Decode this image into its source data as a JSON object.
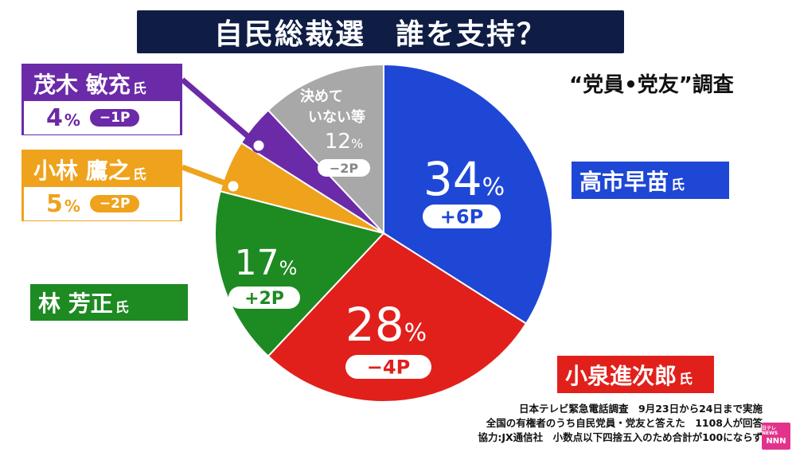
{
  "title": "自民総裁選　誰を支持？",
  "survey_label": "“党員•党友”調査",
  "chart_data": {
    "type": "pie",
    "title": "自民総裁選　誰を支持？",
    "slices": [
      {
        "name": "高市早苗",
        "honorific": "氏",
        "value": 34,
        "change": "+6P",
        "color": "#1f47d6"
      },
      {
        "name": "小泉進次郎",
        "honorific": "氏",
        "value": 28,
        "change": "−4P",
        "color": "#e1201c"
      },
      {
        "name": "林 芳正",
        "honorific": "氏",
        "value": 17,
        "change": "+2P",
        "color": "#1e8a22"
      },
      {
        "name": "小林 鷹之",
        "honorific": "氏",
        "value": 5,
        "change": "−2P",
        "color": "#efa21c"
      },
      {
        "name": "茂木 敏充",
        "honorific": "氏",
        "value": 4,
        "change": "−1P",
        "color": "#6b2aa8"
      },
      {
        "name": "決めて いない等",
        "honorific": "",
        "value": 12,
        "change": "−2P",
        "color": "#a8a8a8"
      }
    ],
    "unit": "%"
  },
  "labels": {
    "takaichi": {
      "name": "高市早苗",
      "honor": "氏"
    },
    "koizumi": {
      "name": "小泉進次郎",
      "honor": "氏"
    },
    "hayashi": {
      "name": "林 芳正",
      "honor": "氏"
    },
    "kobayashi": {
      "name": "小林 鷹之",
      "honor": "氏",
      "value": "5",
      "pct": "%",
      "change": "−2P"
    },
    "motegi": {
      "name": "茂木 敏充",
      "honor": "氏",
      "value": "4",
      "pct": "%",
      "change": "−1P"
    },
    "undecided": {
      "line1": "決めて",
      "line2": "いない等",
      "value": "12",
      "pct": "%",
      "change": "−2P"
    }
  },
  "inside": {
    "takaichi": {
      "value": "34",
      "pct": "%",
      "change": "+6P"
    },
    "koizumi": {
      "value": "28",
      "pct": "%",
      "change": "−4P"
    },
    "hayashi": {
      "value": "17",
      "pct": "%",
      "change": "+2P"
    }
  },
  "footnotes": [
    "日本テレビ緊急電話調査　9月23日から24日まで実施",
    "全国の有権者のうち自民党員・党友と答えた　1108人が回答",
    "協力:JX通信社　小数点以下四捨五入のため合計が100にならず"
  ],
  "logo": {
    "top": "日テレNEWS",
    "main": "NNN"
  },
  "colors": {
    "title_bg": "#0f1d45",
    "blue": "#1f47d6",
    "red": "#e1201c",
    "green": "#1e8a22",
    "orange": "#efa21c",
    "purple": "#6b2aa8",
    "gray": "#a8a8a8"
  }
}
